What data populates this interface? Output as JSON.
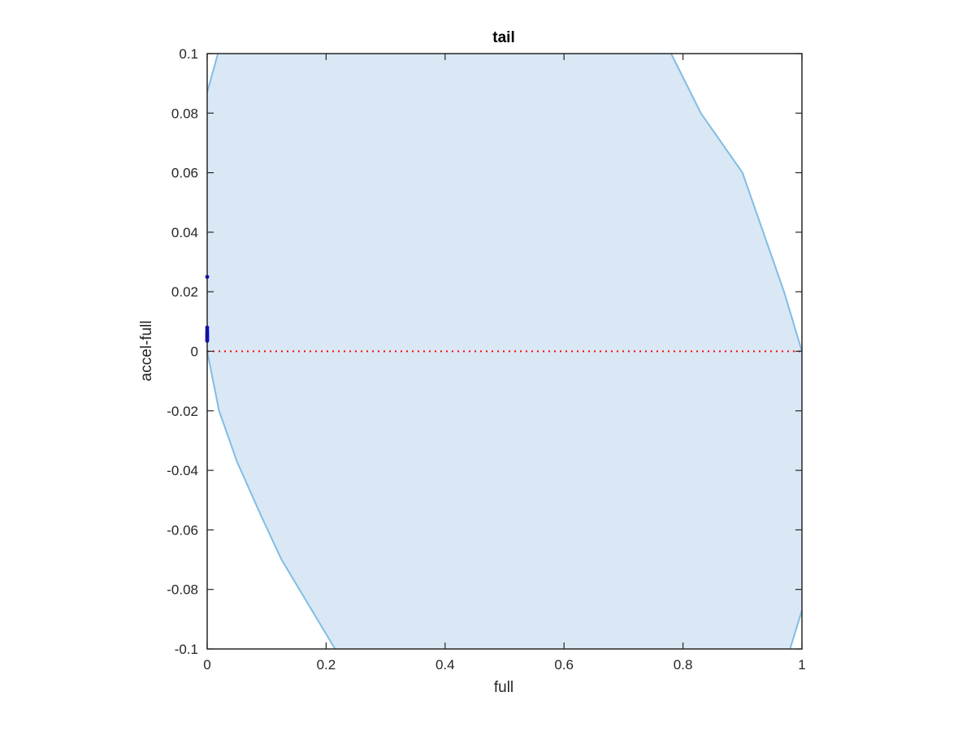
{
  "chart_data": {
    "type": "area",
    "title": "tail",
    "xlabel": "full",
    "ylabel": "accel-full",
    "xlim": [
      0,
      1
    ],
    "ylim": [
      -0.1,
      0.1
    ],
    "xticks": [
      0,
      0.2,
      0.4,
      0.6,
      0.8,
      1
    ],
    "xtick_labels": [
      "0",
      "0.2",
      "0.4",
      "0.6",
      "0.8",
      "1"
    ],
    "yticks": [
      0.1,
      0.08,
      0.06,
      0.04,
      0.02,
      0,
      -0.02,
      -0.04,
      -0.06,
      -0.08,
      -0.1
    ],
    "ytick_labels": [
      "0.1",
      "0.08",
      "0.06",
      "0.04",
      "0.02",
      "0",
      "-0.02",
      "-0.04",
      "-0.06",
      "-0.08",
      "-0.1"
    ],
    "grid": false,
    "region": {
      "fill_color": "#d9e8f4",
      "edge_color": "#80bde3",
      "right_boundary": [
        {
          "x": 0.78,
          "y": 0.1
        },
        {
          "x": 0.83,
          "y": 0.08
        },
        {
          "x": 0.9,
          "y": 0.06
        },
        {
          "x": 0.935,
          "y": 0.04
        },
        {
          "x": 0.97,
          "y": 0.02
        },
        {
          "x": 1.0,
          "y": 0.0
        }
      ],
      "left_boundary": [
        {
          "x": 0.0,
          "y": 0.0
        },
        {
          "x": 0.02,
          "y": -0.02
        },
        {
          "x": 0.05,
          "y": -0.037
        },
        {
          "x": 0.09,
          "y": -0.055
        },
        {
          "x": 0.125,
          "y": -0.07
        },
        {
          "x": 0.17,
          "y": -0.085
        },
        {
          "x": 0.215,
          "y": -0.1
        }
      ],
      "top_left_corner": [
        {
          "x": 0.0,
          "y": 0.087
        },
        {
          "x": 0.018,
          "y": 0.1
        }
      ],
      "bottom_right_corner": [
        {
          "x": 0.98,
          "y": -0.1
        },
        {
          "x": 1.0,
          "y": -0.087
        }
      ]
    },
    "reference_line": {
      "y": 0,
      "color": "#ff0000",
      "style": "dotted"
    },
    "points": {
      "color": "#0000ff",
      "values": [
        {
          "x": 0.0,
          "y": 0.025
        },
        {
          "x": 0.0,
          "y": 0.008
        },
        {
          "x": 0.0,
          "y": 0.0072
        },
        {
          "x": 0.0,
          "y": 0.0065
        },
        {
          "x": 0.0,
          "y": 0.006
        },
        {
          "x": 0.0,
          "y": 0.0055
        },
        {
          "x": 0.0,
          "y": 0.005
        },
        {
          "x": 0.0,
          "y": 0.0045
        },
        {
          "x": 0.0,
          "y": 0.004
        },
        {
          "x": 0.0,
          "y": 0.0035
        }
      ]
    }
  }
}
